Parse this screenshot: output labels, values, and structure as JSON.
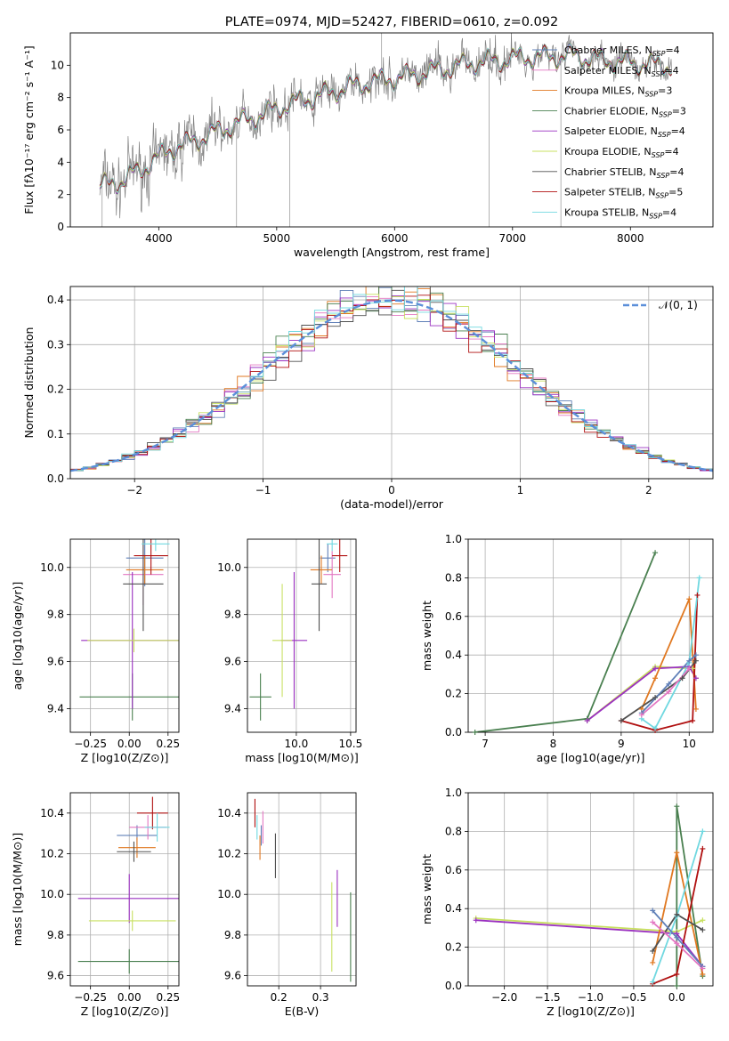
{
  "title": "PLATE=0974, MJD=52427, FIBERID=0610, z=0.092",
  "colors": {
    "Chabrier MILES": "#6080b8",
    "Salpeter MILES": "#e377c2",
    "Kroupa MILES": "#e07820",
    "Chabrier ELODIE": "#4a8050",
    "Salpeter ELODIE": "#9a30c0",
    "Kroupa ELODIE": "#c8e060",
    "Chabrier STELIB": "#505050",
    "Salpeter STELIB": "#b01010",
    "Kroupa STELIB": "#70d8e0",
    "data": "#808080",
    "gauss": "#5b8fd9"
  },
  "chart_data": [
    {
      "type": "line",
      "title": "PLATE=0974, MJD=52427, FIBERID=0610, z=0.092",
      "xlabel": "wavelength [Angstrom, rest frame]",
      "ylabel": "Flux [fλ10⁻¹⁷ erg cm⁻² s⁻¹ A⁻¹]",
      "xlim": [
        3250,
        8700
      ],
      "ylim": [
        0,
        12
      ],
      "xticks": [
        "4000",
        "5000",
        "6000",
        "7000",
        "8000"
      ],
      "yticks": [
        "0",
        "2",
        "4",
        "6",
        "8",
        "10"
      ],
      "grid": false,
      "legend": "right",
      "series": [
        {
          "name": "Chabrier MILES, NSSP=4",
          "model": "Chabrier MILES"
        },
        {
          "name": "Salpeter MILES, NSSP=4",
          "model": "Salpeter MILES"
        },
        {
          "name": "Kroupa MILES, NSSP=3",
          "model": "Kroupa MILES"
        },
        {
          "name": "Chabrier ELODIE, NSSP=3",
          "model": "Chabrier ELODIE"
        },
        {
          "name": "Salpeter ELODIE, NSSP=4",
          "model": "Salpeter ELODIE"
        },
        {
          "name": "Kroupa ELODIE, NSSP=4",
          "model": "Kroupa ELODIE"
        },
        {
          "name": "Chabrier STELIB, NSSP=4",
          "model": "Chabrier STELIB"
        },
        {
          "name": "Salpeter STELIB, NSSP=5",
          "model": "Salpeter STELIB"
        },
        {
          "name": "Kroupa STELIB, NSSP=4",
          "model": "Kroupa STELIB"
        }
      ],
      "continuum": [
        [
          3500,
          2.5
        ],
        [
          3700,
          2.9
        ],
        [
          3900,
          3.8
        ],
        [
          4100,
          4.8
        ],
        [
          4300,
          5.3
        ],
        [
          4500,
          5.9
        ],
        [
          4700,
          6.5
        ],
        [
          4900,
          7.0
        ],
        [
          5100,
          7.6
        ],
        [
          5300,
          8.0
        ],
        [
          5500,
          8.4
        ],
        [
          5700,
          8.8
        ],
        [
          5900,
          9.1
        ],
        [
          6100,
          9.3
        ],
        [
          6300,
          9.6
        ],
        [
          6500,
          9.9
        ],
        [
          6700,
          10.2
        ],
        [
          6900,
          10.3
        ],
        [
          7100,
          10.5
        ],
        [
          7300,
          10.5
        ],
        [
          7500,
          10.6
        ],
        [
          7700,
          10.4
        ],
        [
          7900,
          10.2
        ],
        [
          8100,
          10.1
        ],
        [
          8300,
          10.0
        ]
      ]
    },
    {
      "type": "bar",
      "xlabel": "(data-model)/error",
      "ylabel": "Normed distribution",
      "xlim": [
        -2.5,
        2.5
      ],
      "ylim": [
        0,
        0.43
      ],
      "xticks": [
        "−2",
        "−1",
        "0",
        "1",
        "2"
      ],
      "yticks": [
        "0.0",
        "0.1",
        "0.2",
        "0.3",
        "0.4"
      ],
      "grid": true,
      "legend": "top-right",
      "reference": {
        "name": "𝒩(0, 1)",
        "mean": 0,
        "sigma": 1
      }
    },
    {
      "type": "scatter",
      "xlabel": "Z [log10(Z/Z⊙)]",
      "ylabel": "age [log10(age/yr)]",
      "xlim": [
        -0.38,
        0.32
      ],
      "ylim": [
        9.3,
        10.12
      ],
      "xticks": [
        "−0.25",
        "0.00",
        "0.25"
      ],
      "yticks": [
        "9.4",
        "9.6",
        "9.8",
        "10.0"
      ],
      "grid": true,
      "points": [
        {
          "m": "Chabrier MILES",
          "x": 0.1,
          "y": 10.04,
          "xe": 0.12,
          "ye": 0.12
        },
        {
          "m": "Salpeter MILES",
          "x": 0.09,
          "y": 9.97,
          "xe": 0.13,
          "ye": 0.13
        },
        {
          "m": "Kroupa MILES",
          "x": 0.1,
          "y": 9.99,
          "xe": 0.12,
          "ye": 0.06
        },
        {
          "m": "Chabrier ELODIE",
          "x": 0.02,
          "y": 9.45,
          "xe": 0.34,
          "ye": 0.1
        },
        {
          "m": "Salpeter ELODIE",
          "x": 0.02,
          "y": 9.69,
          "xe": 0.33,
          "ye": 0.29
        },
        {
          "m": "Kroupa ELODIE",
          "x": 0.03,
          "y": 9.69,
          "xe": 0.3,
          "ye": 0.05
        },
        {
          "m": "Chabrier STELIB",
          "x": 0.09,
          "y": 9.93,
          "xe": 0.13,
          "ye": 0.2
        },
        {
          "m": "Salpeter STELIB",
          "x": 0.14,
          "y": 10.05,
          "xe": 0.11,
          "ye": 0.08
        },
        {
          "m": "Kroupa STELIB",
          "x": 0.17,
          "y": 10.1,
          "xe": 0.09,
          "ye": 0.03
        }
      ]
    },
    {
      "type": "scatter",
      "xlabel": "mass [log10(M/M⊙)]",
      "ylabel": "",
      "xlim": [
        9.55,
        10.55
      ],
      "ylim": [
        9.3,
        10.12
      ],
      "xticks": [
        "10.0",
        "10.5"
      ],
      "yticks": [
        "9.4",
        "9.6",
        "9.8",
        "10.0"
      ],
      "grid": true,
      "points": [
        {
          "m": "Chabrier MILES",
          "x": 10.29,
          "y": 10.04,
          "xe": 0.07,
          "ye": 0.06
        },
        {
          "m": "Salpeter MILES",
          "x": 10.33,
          "y": 9.97,
          "xe": 0.08,
          "ye": 0.1
        },
        {
          "m": "Kroupa MILES",
          "x": 10.23,
          "y": 9.99,
          "xe": 0.1,
          "ye": 0.06
        },
        {
          "m": "Chabrier ELODIE",
          "x": 9.67,
          "y": 9.45,
          "xe": 0.1,
          "ye": 0.1
        },
        {
          "m": "Salpeter ELODIE",
          "x": 9.98,
          "y": 9.69,
          "xe": 0.12,
          "ye": 0.29
        },
        {
          "m": "Kroupa ELODIE",
          "x": 9.87,
          "y": 9.69,
          "xe": 0.09,
          "ye": 0.24
        },
        {
          "m": "Chabrier STELIB",
          "x": 10.21,
          "y": 9.93,
          "xe": 0.07,
          "ye": 0.2
        },
        {
          "m": "Salpeter STELIB",
          "x": 10.4,
          "y": 10.05,
          "xe": 0.07,
          "ye": 0.07
        },
        {
          "m": "Kroupa STELIB",
          "x": 10.33,
          "y": 10.1,
          "xe": 0.05,
          "ye": 0.03
        }
      ]
    },
    {
      "type": "line",
      "xlabel": "age [log10(age/yr)]",
      "ylabel": "mass weight",
      "xlim": [
        6.75,
        10.35
      ],
      "ylim": [
        0,
        1.0
      ],
      "xticks": [
        "7",
        "8",
        "9",
        "10"
      ],
      "yticks": [
        "0.0",
        "0.2",
        "0.4",
        "0.6",
        "0.8",
        "1.0"
      ],
      "grid": true,
      "series": [
        {
          "m": "Chabrier ELODIE",
          "x": [
            6.85,
            8.5,
            9.5
          ],
          "y": [
            0.0,
            0.07,
            0.93
          ]
        },
        {
          "m": "Kroupa ELODIE",
          "x": [
            8.5,
            9.5,
            10.05,
            10.1
          ],
          "y": [
            0.06,
            0.34,
            0.33,
            0.28
          ]
        },
        {
          "m": "Salpeter ELODIE",
          "x": [
            8.5,
            9.5,
            10.0,
            10.1
          ],
          "y": [
            0.06,
            0.33,
            0.34,
            0.28
          ]
        },
        {
          "m": "Kroupa MILES",
          "x": [
            9.3,
            9.5,
            10.0,
            10.1
          ],
          "y": [
            0.12,
            0.28,
            0.69,
            0.12
          ]
        },
        {
          "m": "Salpeter STELIB",
          "x": [
            9.0,
            9.5,
            10.05,
            10.12
          ],
          "y": [
            0.06,
            0.01,
            0.06,
            0.71
          ]
        },
        {
          "m": "Kroupa STELIB",
          "x": [
            9.3,
            9.5,
            10.0,
            10.15
          ],
          "y": [
            0.07,
            0.02,
            0.36,
            0.8
          ]
        },
        {
          "m": "Chabrier STELIB",
          "x": [
            9.0,
            9.5,
            9.9,
            10.1
          ],
          "y": [
            0.06,
            0.18,
            0.28,
            0.37
          ]
        },
        {
          "m": "Chabrier MILES",
          "x": [
            9.3,
            9.7,
            10.0,
            10.1
          ],
          "y": [
            0.1,
            0.25,
            0.37,
            0.4
          ]
        },
        {
          "m": "Salpeter MILES",
          "x": [
            9.3,
            9.7,
            10.0
          ],
          "y": [
            0.09,
            0.21,
            0.33
          ]
        }
      ]
    },
    {
      "type": "scatter",
      "xlabel": "Z [log10(Z/Z⊙)]",
      "ylabel": "mass [log10(M/M⊙)]",
      "xlim": [
        -0.38,
        0.32
      ],
      "ylim": [
        9.55,
        10.5
      ],
      "xticks": [
        "−0.25",
        "0.00",
        "0.25"
      ],
      "yticks": [
        "9.6",
        "9.8",
        "10.0",
        "10.2",
        "10.4"
      ],
      "grid": true,
      "points": [
        {
          "m": "Chabrier MILES",
          "x": 0.05,
          "y": 10.29,
          "xe": 0.13,
          "ye": 0.05
        },
        {
          "m": "Salpeter MILES",
          "x": 0.12,
          "y": 10.33,
          "xe": 0.12,
          "ye": 0.06
        },
        {
          "m": "Kroupa MILES",
          "x": 0.05,
          "y": 10.23,
          "xe": 0.12,
          "ye": 0.05
        },
        {
          "m": "Chabrier ELODIE",
          "x": 0.0,
          "y": 9.67,
          "xe": 0.33,
          "ye": 0.06
        },
        {
          "m": "Salpeter ELODIE",
          "x": 0.0,
          "y": 9.98,
          "xe": 0.33,
          "ye": 0.12
        },
        {
          "m": "Kroupa ELODIE",
          "x": 0.02,
          "y": 9.87,
          "xe": 0.28,
          "ye": 0.05
        },
        {
          "m": "Chabrier STELIB",
          "x": 0.03,
          "y": 10.21,
          "xe": 0.11,
          "ye": 0.05
        },
        {
          "m": "Salpeter STELIB",
          "x": 0.15,
          "y": 10.4,
          "xe": 0.1,
          "ye": 0.08
        },
        {
          "m": "Kroupa STELIB",
          "x": 0.18,
          "y": 10.33,
          "xe": 0.08,
          "ye": 0.07
        }
      ]
    },
    {
      "type": "scatter",
      "xlabel": "E(B-V)",
      "ylabel": "",
      "xlim": [
        0.125,
        0.385
      ],
      "ylim": [
        9.55,
        10.5
      ],
      "xticks": [
        "0.2",
        "0.3"
      ],
      "yticks": [
        "9.6",
        "9.8",
        "10.0",
        "10.2",
        "10.4"
      ],
      "grid": true,
      "points": [
        {
          "m": "Chabrier MILES",
          "x": 0.158,
          "y": 10.29,
          "ye": 0.05
        },
        {
          "m": "Salpeter MILES",
          "x": 0.162,
          "y": 10.33,
          "ye": 0.08
        },
        {
          "m": "Kroupa MILES",
          "x": 0.155,
          "y": 10.23,
          "ye": 0.06
        },
        {
          "m": "Chabrier ELODIE",
          "x": 0.372,
          "y": 9.79,
          "ye": 0.22
        },
        {
          "m": "Salpeter ELODIE",
          "x": 0.34,
          "y": 9.98,
          "ye": 0.14
        },
        {
          "m": "Kroupa ELODIE",
          "x": 0.327,
          "y": 9.84,
          "ye": 0.22
        },
        {
          "m": "Chabrier STELIB",
          "x": 0.192,
          "y": 10.19,
          "ye": 0.11
        },
        {
          "m": "Salpeter STELIB",
          "x": 0.143,
          "y": 10.4,
          "ye": 0.07
        },
        {
          "m": "Kroupa STELIB",
          "x": 0.148,
          "y": 10.33,
          "ye": 0.06
        }
      ]
    },
    {
      "type": "line",
      "xlabel": "Z [log10(Z/Z⊙)]",
      "ylabel": "mass weight",
      "xlim": [
        -2.42,
        0.42
      ],
      "ylim": [
        0,
        1.0
      ],
      "xticks": [
        "−2.0",
        "−1.5",
        "−1.0",
        "−0.5",
        "0.0"
      ],
      "yticks": [
        "0.0",
        "0.2",
        "0.4",
        "0.6",
        "0.8",
        "1.0"
      ],
      "grid": true,
      "series": [
        {
          "m": "Kroupa ELODIE",
          "x": [
            -2.33,
            0.0,
            0.3
          ],
          "y": [
            0.35,
            0.28,
            0.34
          ]
        },
        {
          "m": "Salpeter ELODIE",
          "x": [
            -2.33,
            0.0,
            0.3
          ],
          "y": [
            0.34,
            0.27,
            0.1
          ]
        },
        {
          "m": "Chabrier ELODIE",
          "x": [
            0.0,
            0.0,
            0.3
          ],
          "y": [
            0.0,
            0.93,
            0.05
          ]
        },
        {
          "m": "Kroupa MILES",
          "x": [
            -0.28,
            0.0,
            0.3
          ],
          "y": [
            0.12,
            0.69,
            0.06
          ]
        },
        {
          "m": "Salpeter STELIB",
          "x": [
            -0.28,
            0.0,
            0.3
          ],
          "y": [
            0.01,
            0.06,
            0.71
          ]
        },
        {
          "m": "Kroupa STELIB",
          "x": [
            -0.28,
            0.0,
            0.3
          ],
          "y": [
            0.02,
            0.36,
            0.8
          ]
        },
        {
          "m": "Chabrier STELIB",
          "x": [
            -0.28,
            0.0,
            0.3
          ],
          "y": [
            0.18,
            0.37,
            0.29
          ]
        },
        {
          "m": "Chabrier MILES",
          "x": [
            -0.28,
            0.0,
            0.3
          ],
          "y": [
            0.39,
            0.25,
            0.1
          ]
        },
        {
          "m": "Salpeter MILES",
          "x": [
            -0.28,
            0.0,
            0.3
          ],
          "y": [
            0.33,
            0.22,
            0.09
          ]
        }
      ]
    }
  ]
}
